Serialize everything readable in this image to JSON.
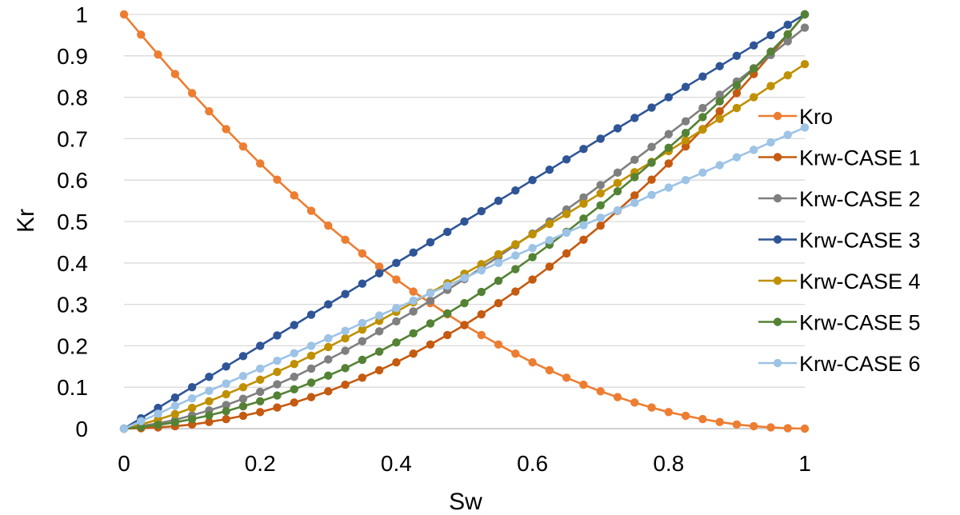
{
  "chart_data": {
    "type": "line",
    "title": "",
    "xlabel": "Sw",
    "ylabel": "Kr",
    "xlim": [
      0,
      1
    ],
    "ylim": [
      0,
      1
    ],
    "x_ticks": [
      0,
      0.2,
      0.4,
      0.6,
      0.8,
      1
    ],
    "x_tick_labels": [
      "0",
      "0.2",
      "0.4",
      "0.6",
      "0.8",
      "1"
    ],
    "y_ticks": [
      0,
      0.1,
      0.2,
      0.3,
      0.4,
      0.5,
      0.6,
      0.7,
      0.8,
      0.9,
      1
    ],
    "y_tick_labels": [
      "0",
      "0.1",
      "0.2",
      "0.3",
      "0.4",
      "0.5",
      "0.6",
      "0.7",
      "0.8",
      "0.9",
      "1"
    ],
    "grid": "horizontal",
    "legend_position": "right",
    "x": [
      0,
      0.025,
      0.05,
      0.075,
      0.1,
      0.125,
      0.15,
      0.175,
      0.2,
      0.225,
      0.25,
      0.275,
      0.3,
      0.325,
      0.35,
      0.375,
      0.4,
      0.425,
      0.45,
      0.475,
      0.5,
      0.525,
      0.55,
      0.575,
      0.6,
      0.625,
      0.65,
      0.675,
      0.7,
      0.725,
      0.75,
      0.775,
      0.8,
      0.825,
      0.85,
      0.875,
      0.9,
      0.925,
      0.95,
      0.975,
      1
    ],
    "series": [
      {
        "name": "Kro",
        "color": "#ed7d31",
        "values": [
          1,
          0.951,
          0.903,
          0.856,
          0.81,
          0.766,
          0.723,
          0.681,
          0.64,
          0.601,
          0.563,
          0.526,
          0.49,
          0.456,
          0.423,
          0.391,
          0.36,
          0.331,
          0.303,
          0.276,
          0.25,
          0.226,
          0.203,
          0.181,
          0.16,
          0.141,
          0.123,
          0.106,
          0.09,
          0.076,
          0.063,
          0.051,
          0.04,
          0.031,
          0.023,
          0.016,
          0.01,
          0.006,
          0.003,
          0.001,
          0
        ]
      },
      {
        "name": "Krw-CASE 1",
        "color": "#c55a11",
        "values": [
          0,
          0.001,
          0.003,
          0.006,
          0.01,
          0.016,
          0.023,
          0.031,
          0.04,
          0.051,
          0.063,
          0.076,
          0.09,
          0.106,
          0.123,
          0.141,
          0.16,
          0.181,
          0.203,
          0.226,
          0.25,
          0.276,
          0.303,
          0.331,
          0.36,
          0.391,
          0.423,
          0.456,
          0.49,
          0.526,
          0.563,
          0.601,
          0.64,
          0.681,
          0.723,
          0.766,
          0.81,
          0.856,
          0.903,
          0.951,
          1
        ]
      },
      {
        "name": "Krw-CASE 2",
        "color": "#7f7f7f",
        "values": [
          0,
          0.006,
          0.013,
          0.021,
          0.032,
          0.044,
          0.057,
          0.072,
          0.089,
          0.107,
          0.125,
          0.145,
          0.167,
          0.188,
          0.211,
          0.235,
          0.259,
          0.283,
          0.309,
          0.335,
          0.361,
          0.388,
          0.415,
          0.443,
          0.471,
          0.5,
          0.529,
          0.558,
          0.588,
          0.618,
          0.649,
          0.68,
          0.711,
          0.742,
          0.774,
          0.806,
          0.838,
          0.87,
          0.902,
          0.935,
          0.968
        ]
      },
      {
        "name": "Krw-CASE 3",
        "color": "#2f5597",
        "values": [
          0,
          0.025,
          0.05,
          0.075,
          0.1,
          0.125,
          0.15,
          0.175,
          0.2,
          0.225,
          0.25,
          0.275,
          0.3,
          0.325,
          0.35,
          0.375,
          0.4,
          0.425,
          0.45,
          0.475,
          0.5,
          0.525,
          0.55,
          0.575,
          0.6,
          0.625,
          0.65,
          0.675,
          0.7,
          0.725,
          0.75,
          0.775,
          0.8,
          0.825,
          0.85,
          0.875,
          0.9,
          0.925,
          0.95,
          0.975,
          1
        ]
      },
      {
        "name": "Krw-CASE 4",
        "color": "#bf9000",
        "values": [
          0,
          0.01,
          0.022,
          0.035,
          0.05,
          0.066,
          0.083,
          0.1,
          0.118,
          0.137,
          0.156,
          0.176,
          0.197,
          0.218,
          0.239,
          0.26,
          0.282,
          0.305,
          0.328,
          0.351,
          0.374,
          0.397,
          0.421,
          0.445,
          0.469,
          0.494,
          0.518,
          0.543,
          0.568,
          0.593,
          0.619,
          0.644,
          0.67,
          0.696,
          0.722,
          0.748,
          0.774,
          0.8,
          0.827,
          0.853,
          0.88
        ]
      },
      {
        "name": "Krw-CASE 5",
        "color": "#548235",
        "values": [
          0,
          0.004,
          0.009,
          0.015,
          0.023,
          0.032,
          0.042,
          0.054,
          0.066,
          0.08,
          0.095,
          0.111,
          0.128,
          0.146,
          0.166,
          0.186,
          0.208,
          0.23,
          0.254,
          0.278,
          0.303,
          0.33,
          0.357,
          0.385,
          0.414,
          0.444,
          0.475,
          0.507,
          0.539,
          0.573,
          0.607,
          0.642,
          0.678,
          0.714,
          0.752,
          0.79,
          0.829,
          0.869,
          0.91,
          0.952,
          1
        ]
      },
      {
        "name": "Krw-CASE 6",
        "color": "#9dc3e6",
        "values": [
          0,
          0.018,
          0.036,
          0.055,
          0.073,
          0.091,
          0.109,
          0.127,
          0.145,
          0.164,
          0.182,
          0.2,
          0.218,
          0.236,
          0.255,
          0.273,
          0.291,
          0.309,
          0.327,
          0.345,
          0.364,
          0.382,
          0.4,
          0.418,
          0.436,
          0.455,
          0.473,
          0.491,
          0.509,
          0.527,
          0.545,
          0.564,
          0.582,
          0.6,
          0.618,
          0.636,
          0.655,
          0.673,
          0.691,
          0.709,
          0.727
        ]
      }
    ]
  }
}
